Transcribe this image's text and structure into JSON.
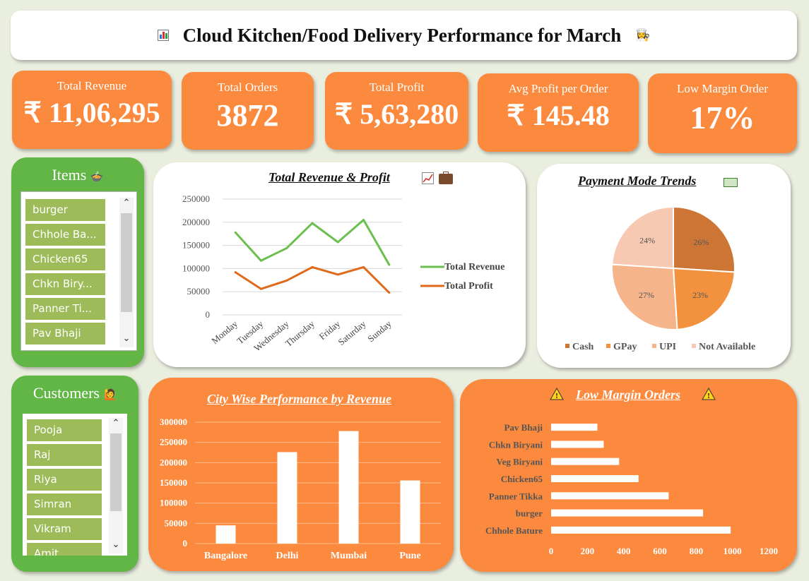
{
  "header": {
    "title": "Cloud Kitchen/Food Delivery Performance for March",
    "left_icon": "bar-chart-icon",
    "right_icon": "cook-icon"
  },
  "kpis": [
    {
      "label": "Total Revenue",
      "value": "₹ 11,06,295"
    },
    {
      "label": "Total Orders",
      "value": "3872"
    },
    {
      "label": "Total Profit",
      "value": "₹ 5,63,280"
    },
    {
      "label": "Avg Profit per Order",
      "value": "₹ 145.48"
    },
    {
      "label": "Low Margin Order",
      "value": "17%"
    }
  ],
  "items_slicer": {
    "title": "Items",
    "icon": "food-bowl-icon",
    "items": [
      "burger",
      "Chhole Ba...",
      "Chicken65",
      "Chkn Biry...",
      "Panner Ti...",
      "Pav Bhaji"
    ]
  },
  "customers_slicer": {
    "title": "Customers",
    "icon": "person-icon",
    "items": [
      "Pooja",
      "Raj",
      "Riya",
      "Simran",
      "Vikram",
      "Amit"
    ]
  },
  "colors": {
    "orange": "#fb8a3f",
    "green": "#62b645",
    "slicer_item": "#9dbb58",
    "revenue_line": "#6bbf4e",
    "profit_line": "#e06a1c"
  },
  "revenue_chart": {
    "title": "Total Revenue & Profit",
    "icons": [
      "chart-increasing-icon",
      "briefcase-icon"
    ],
    "chart_data": {
      "type": "line",
      "categories": [
        "Monday",
        "Tuesday",
        "Wednesday",
        "Thursday",
        "Friday",
        "Saturday",
        "Sunday"
      ],
      "series": [
        {
          "name": "Total Revenue",
          "values": [
            178000,
            117000,
            144000,
            198000,
            157000,
            205000,
            108000
          ]
        },
        {
          "name": "Total Profit",
          "values": [
            92000,
            56000,
            74000,
            103000,
            87000,
            103000,
            48000
          ]
        }
      ],
      "yticks": [
        "250000",
        "200000",
        "150000",
        "100000",
        "50000",
        "0"
      ],
      "ylim": [
        0,
        250000
      ],
      "legend": "right"
    }
  },
  "payment_chart": {
    "title": "Payment Mode Trends",
    "icon": "money-icon",
    "chart_data": {
      "type": "pie",
      "labels": [
        "Cash",
        "GPay",
        "UPI",
        "Not Available"
      ],
      "values": [
        26,
        23,
        27,
        24
      ],
      "value_labels": [
        "26%",
        "23%",
        "27%",
        "24%"
      ],
      "colors": [
        "#cd7535",
        "#f2923f",
        "#f5b48a",
        "#f7c9b2"
      ],
      "legend": "bottom"
    }
  },
  "city_chart": {
    "title": "City Wise Performance by Revenue",
    "chart_data": {
      "type": "bar",
      "categories": [
        "Bangalore",
        "Delhi",
        "Mumbai",
        "Pune"
      ],
      "values": [
        45000,
        226000,
        278000,
        156000
      ],
      "yticks": [
        "300000",
        "250000",
        "200000",
        "150000",
        "100000",
        "50000",
        "0"
      ],
      "ylim": [
        0,
        300000
      ]
    }
  },
  "low_margin_chart": {
    "title": "Low Margin Orders",
    "icon": "warning-icon",
    "chart_data": {
      "type": "bar",
      "orientation": "horizontal",
      "categories": [
        "Pav Bhaji",
        "Chkn Biryani",
        "Veg Biryani",
        "Chicken65",
        "Panner Tikka",
        "burger",
        "Chhole Bature"
      ],
      "values": [
        255,
        290,
        375,
        482,
        648,
        838,
        990
      ],
      "xticks": [
        "0",
        "200",
        "400",
        "600",
        "800",
        "1000",
        "1200"
      ],
      "xlim": [
        0,
        1200
      ]
    }
  }
}
